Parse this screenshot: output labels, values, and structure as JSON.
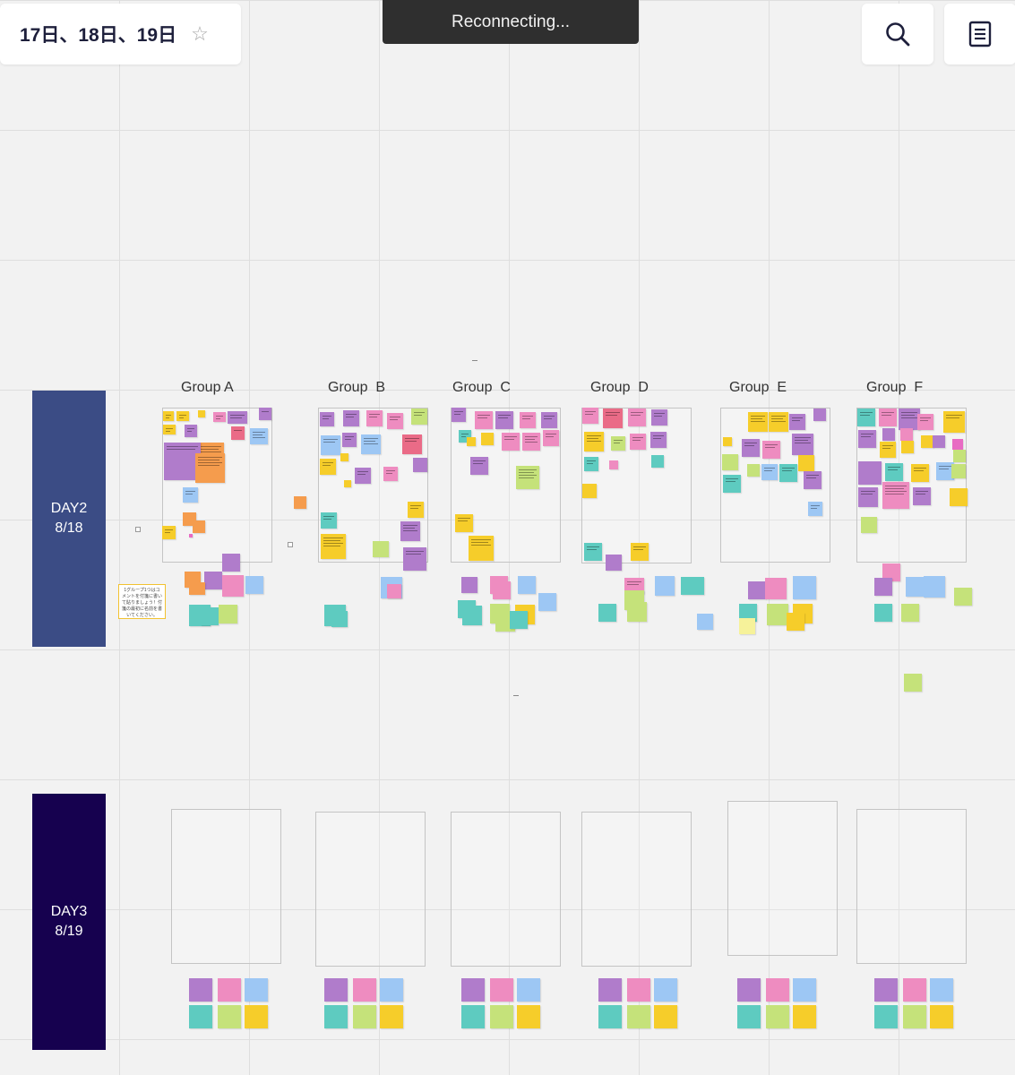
{
  "board": {
    "title": "17日、18日、19日",
    "star_icon": "star-icon"
  },
  "toast": {
    "text": "Reconnecting..."
  },
  "toolbar": {
    "search_icon": "search-icon",
    "notes_icon": "document-icon"
  },
  "colors": {
    "day2_band": "#3b4c85",
    "day3_band": "#16014f",
    "purple": "#b07ccb",
    "pink": "#ee8cc0",
    "blue": "#9dc7f4",
    "teal": "#5ecbc0",
    "lime": "#c5e27a",
    "yellow": "#f6cd2a",
    "orange": "#f59c4d",
    "red": "#ea6b87",
    "magenta": "#e86bc3",
    "light_yellow": "#f6f29a"
  },
  "day2": {
    "label": "DAY2",
    "date": "8/18"
  },
  "day3": {
    "label": "DAY3",
    "date": "8/19"
  },
  "groups": [
    {
      "name": "Group A"
    },
    {
      "name": "Group  B"
    },
    {
      "name": "Group  C"
    },
    {
      "name": "Group  D"
    },
    {
      "name": "Group  E"
    },
    {
      "name": "Group  F"
    }
  ],
  "comment_note": {
    "text": "1グループ1つはコメントを付箋に書いて貼りましょう！付箋の最初に名前を書いてください。"
  }
}
